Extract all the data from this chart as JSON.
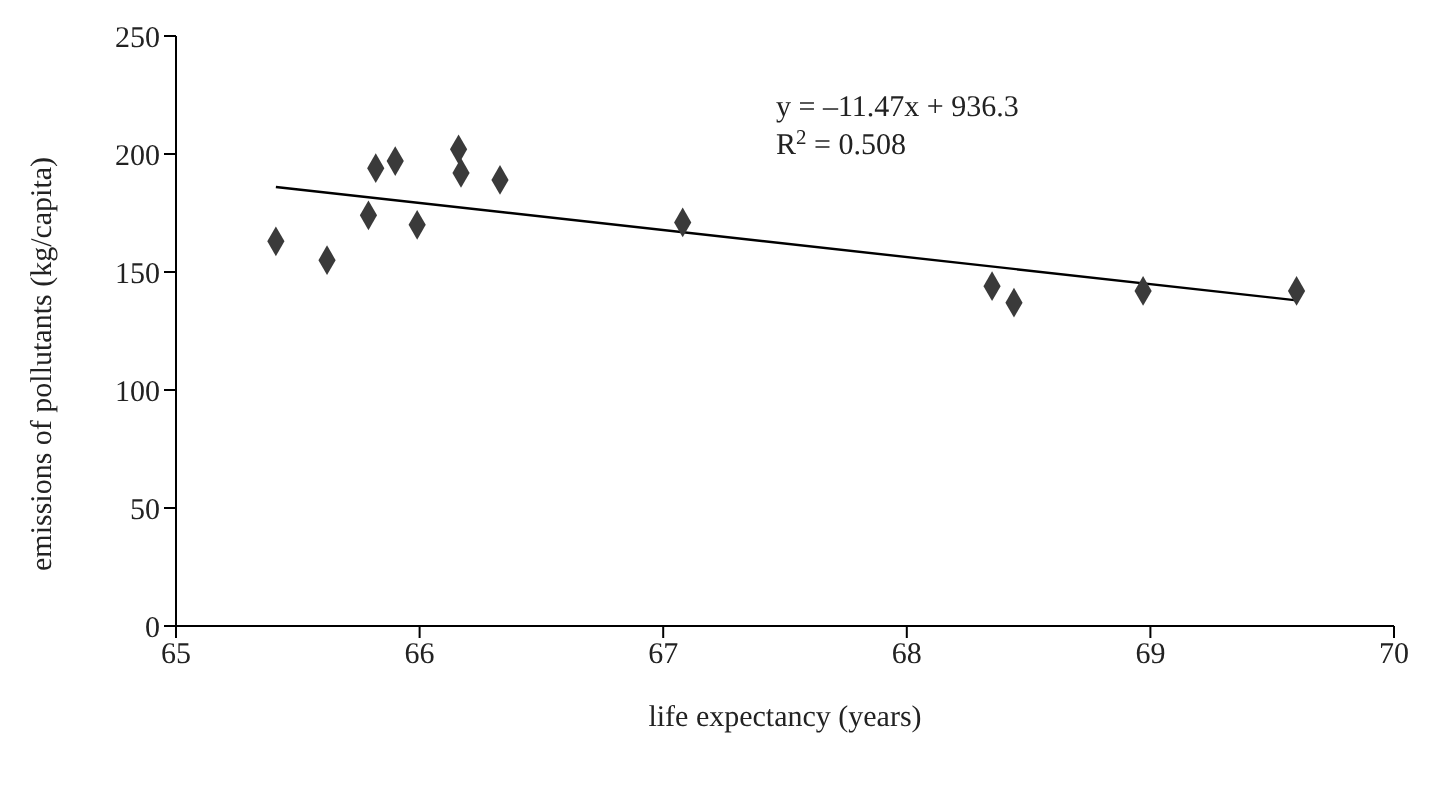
{
  "chart_data": {
    "type": "scatter",
    "xlabel": "life expectancy (years)",
    "ylabel": "emissions of pollutants (kg/capita)",
    "xlim": [
      65,
      70
    ],
    "xticks": [
      65,
      66,
      67,
      68,
      69,
      70
    ],
    "ylim": [
      0,
      250
    ],
    "yticks": [
      0,
      50,
      100,
      150,
      200,
      250
    ],
    "grid": false,
    "legend": false,
    "marker": "diamond",
    "series": [
      {
        "color": "#3a3a3a",
        "x": [
          65.41,
          65.62,
          65.79,
          65.82,
          65.9,
          65.99,
          66.16,
          66.17,
          66.33,
          67.08,
          68.35,
          68.44,
          68.97,
          69.6
        ],
        "values": [
          163,
          155,
          174,
          194,
          197,
          170,
          202,
          192,
          189,
          171,
          144,
          137,
          142,
          142
        ]
      },
      {
        "type": "line",
        "color": "#000000",
        "marker": "none",
        "line_style": "solid",
        "x": [
          65.41,
          69.6
        ],
        "values": [
          186,
          138
        ]
      }
    ],
    "annotations": [
      "y = –11.47x + 936.3",
      "R$^{2}$ = 0.508"
    ]
  }
}
